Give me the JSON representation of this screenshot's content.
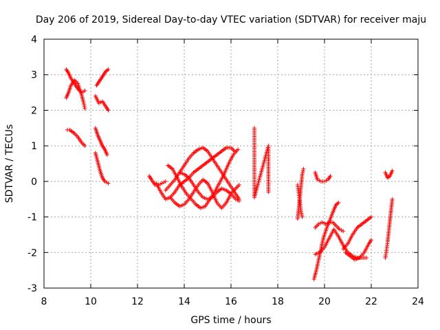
{
  "chart_data": {
    "type": "scatter",
    "title": "Day 206 of 2019, Sidereal Day-to-day VTEC variation (SDTVAR) for receiver maju",
    "xlabel": "GPS time / hours",
    "ylabel": "SDTVAR / TECUs",
    "xlim": [
      8,
      24
    ],
    "ylim": [
      -3,
      4
    ],
    "x_ticks": [
      8,
      10,
      12,
      14,
      16,
      18,
      20,
      22,
      24
    ],
    "y_ticks": [
      -3,
      -2,
      -1,
      0,
      1,
      2,
      3,
      4
    ],
    "x_tick_labels": [
      "8",
      "10",
      "12",
      "14",
      "16",
      "18",
      "20",
      "22",
      "24"
    ],
    "y_tick_labels": [
      "-3",
      "-2",
      "-1",
      "0",
      "1",
      "2",
      "3",
      "4"
    ],
    "grid": true,
    "marker": "+",
    "series": [
      {
        "name": "SDTVAR",
        "color": "#ff0000",
        "tracks": [
          [
            [
              8.95,
              3.15
            ],
            [
              9.05,
              3.05
            ],
            [
              9.15,
              2.9
            ],
            [
              9.3,
              2.75
            ],
            [
              9.45,
              2.6
            ],
            [
              9.6,
              2.5
            ],
            [
              9.75,
              2.55
            ]
          ],
          [
            [
              8.95,
              2.35
            ],
            [
              9.05,
              2.5
            ],
            [
              9.15,
              2.7
            ],
            [
              9.3,
              2.85
            ],
            [
              9.45,
              2.75
            ],
            [
              9.6,
              2.45
            ],
            [
              9.7,
              2.2
            ],
            [
              9.75,
              2.05
            ]
          ],
          [
            [
              9.0,
              1.45
            ],
            [
              9.1,
              1.45
            ],
            [
              9.2,
              1.4
            ],
            [
              9.3,
              1.35
            ],
            [
              9.45,
              1.25
            ],
            [
              9.6,
              1.1
            ],
            [
              9.75,
              1.0
            ]
          ],
          [
            [
              10.2,
              1.5
            ],
            [
              10.3,
              1.3
            ],
            [
              10.4,
              1.15
            ],
            [
              10.5,
              1.0
            ],
            [
              10.6,
              0.9
            ],
            [
              10.7,
              0.75
            ]
          ],
          [
            [
              10.2,
              0.8
            ],
            [
              10.3,
              0.55
            ],
            [
              10.4,
              0.3
            ],
            [
              10.5,
              0.1
            ],
            [
              10.6,
              0.0
            ],
            [
              10.75,
              -0.05
            ]
          ],
          [
            [
              10.2,
              2.4
            ],
            [
              10.35,
              2.2
            ],
            [
              10.5,
              2.25
            ],
            [
              10.65,
              2.1
            ],
            [
              10.75,
              2.0
            ]
          ],
          [
            [
              10.25,
              2.7
            ],
            [
              10.35,
              2.8
            ],
            [
              10.45,
              2.9
            ],
            [
              10.55,
              3.0
            ],
            [
              10.65,
              3.1
            ],
            [
              10.75,
              3.15
            ]
          ],
          [
            [
              12.5,
              0.15
            ],
            [
              12.6,
              0.05
            ],
            [
              12.75,
              -0.1
            ],
            [
              12.9,
              -0.1
            ],
            [
              13.05,
              -0.05
            ],
            [
              13.2,
              0.0
            ]
          ],
          [
            [
              12.8,
              -0.05
            ],
            [
              13.0,
              -0.3
            ],
            [
              13.2,
              -0.5
            ],
            [
              13.4,
              -0.45
            ],
            [
              13.6,
              -0.3
            ],
            [
              13.8,
              -0.1
            ],
            [
              14.0,
              0.0
            ],
            [
              14.2,
              0.1
            ],
            [
              14.4,
              0.25
            ],
            [
              14.6,
              0.35
            ],
            [
              14.8,
              0.45
            ],
            [
              15.0,
              0.55
            ],
            [
              15.2,
              0.65
            ],
            [
              15.4,
              0.75
            ],
            [
              15.6,
              0.85
            ],
            [
              15.8,
              0.95
            ],
            [
              16.0,
              0.95
            ],
            [
              16.15,
              0.85
            ]
          ],
          [
            [
              13.3,
              0.45
            ],
            [
              13.5,
              0.35
            ],
            [
              13.7,
              0.1
            ],
            [
              13.9,
              -0.15
            ],
            [
              14.1,
              -0.35
            ],
            [
              14.3,
              -0.5
            ],
            [
              14.5,
              -0.65
            ],
            [
              14.7,
              -0.75
            ],
            [
              14.9,
              -0.7
            ],
            [
              15.1,
              -0.5
            ],
            [
              15.3,
              -0.3
            ],
            [
              15.5,
              -0.05
            ],
            [
              15.7,
              0.2
            ],
            [
              15.9,
              0.5
            ],
            [
              16.1,
              0.75
            ],
            [
              16.3,
              0.9
            ]
          ],
          [
            [
              13.2,
              -0.25
            ],
            [
              13.4,
              -0.1
            ],
            [
              13.6,
              0.05
            ],
            [
              13.8,
              0.25
            ],
            [
              14.0,
              0.45
            ],
            [
              14.2,
              0.65
            ],
            [
              14.4,
              0.8
            ],
            [
              14.6,
              0.9
            ],
            [
              14.8,
              0.95
            ],
            [
              15.0,
              0.85
            ],
            [
              15.2,
              0.65
            ],
            [
              15.4,
              0.45
            ],
            [
              15.6,
              0.25
            ],
            [
              15.8,
              0.05
            ],
            [
              16.0,
              -0.15
            ],
            [
              16.2,
              -0.35
            ],
            [
              16.35,
              -0.5
            ]
          ],
          [
            [
              13.4,
              -0.45
            ],
            [
              13.6,
              -0.6
            ],
            [
              13.8,
              -0.7
            ],
            [
              14.0,
              -0.65
            ],
            [
              14.2,
              -0.5
            ],
            [
              14.4,
              -0.3
            ],
            [
              14.6,
              -0.1
            ],
            [
              14.8,
              0.05
            ],
            [
              15.0,
              -0.05
            ],
            [
              15.2,
              -0.3
            ],
            [
              15.4,
              -0.6
            ],
            [
              15.6,
              -0.75
            ],
            [
              15.8,
              -0.6
            ],
            [
              16.0,
              -0.35
            ],
            [
              16.2,
              -0.2
            ],
            [
              16.35,
              -0.1
            ]
          ],
          [
            [
              13.8,
              0.25
            ],
            [
              14.0,
              0.2
            ],
            [
              14.2,
              0.1
            ],
            [
              14.4,
              -0.1
            ],
            [
              14.6,
              -0.3
            ],
            [
              14.8,
              -0.45
            ],
            [
              15.0,
              -0.5
            ],
            [
              15.2,
              -0.45
            ],
            [
              15.4,
              -0.3
            ],
            [
              15.6,
              -0.2
            ],
            [
              15.8,
              -0.25
            ],
            [
              16.0,
              -0.35
            ],
            [
              16.2,
              -0.5
            ],
            [
              16.35,
              -0.55
            ]
          ],
          [
            [
              17.0,
              1.5
            ],
            [
              17.0,
              0.6
            ],
            [
              17.0,
              -0.3
            ],
            [
              17.0,
              -0.45
            ],
            [
              17.6,
              1.0
            ],
            [
              17.6,
              -0.3
            ]
          ],
          [
            [
              18.85,
              -1.05
            ],
            [
              18.9,
              -0.75
            ],
            [
              18.95,
              -0.45
            ],
            [
              19.0,
              -0.1
            ],
            [
              19.05,
              0.2
            ],
            [
              19.1,
              0.35
            ]
          ],
          [
            [
              18.85,
              -0.1
            ],
            [
              18.9,
              -0.35
            ],
            [
              18.95,
              -0.6
            ],
            [
              19.0,
              -0.85
            ],
            [
              19.05,
              -1.0
            ]
          ],
          [
            [
              19.6,
              0.25
            ],
            [
              19.7,
              0.05
            ],
            [
              19.85,
              0.0
            ],
            [
              20.0,
              0.0
            ],
            [
              20.15,
              0.05
            ],
            [
              20.25,
              0.15
            ]
          ],
          [
            [
              19.55,
              -2.75
            ],
            [
              19.65,
              -2.5
            ],
            [
              19.75,
              -2.2
            ],
            [
              19.85,
              -1.9
            ],
            [
              19.95,
              -1.6
            ],
            [
              20.1,
              -1.3
            ],
            [
              20.25,
              -1.05
            ],
            [
              20.4,
              -0.8
            ],
            [
              20.5,
              -0.65
            ],
            [
              20.6,
              -0.6
            ]
          ],
          [
            [
              19.6,
              -1.3
            ],
            [
              19.75,
              -1.2
            ],
            [
              19.9,
              -1.15
            ],
            [
              20.05,
              -1.2
            ],
            [
              20.2,
              -1.15
            ],
            [
              20.35,
              -1.15
            ],
            [
              20.5,
              -1.25
            ],
            [
              20.65,
              -1.35
            ],
            [
              20.8,
              -1.4
            ]
          ],
          [
            [
              19.6,
              -2.05
            ],
            [
              19.8,
              -2.0
            ],
            [
              20.0,
              -1.85
            ],
            [
              20.2,
              -1.6
            ],
            [
              20.4,
              -1.35
            ],
            [
              20.6,
              -1.55
            ],
            [
              20.8,
              -1.8
            ],
            [
              21.0,
              -2.0
            ],
            [
              21.2,
              -2.1
            ],
            [
              21.4,
              -2.15
            ],
            [
              21.6,
              -2.15
            ],
            [
              21.8,
              -2.15
            ]
          ],
          [
            [
              20.8,
              -1.9
            ],
            [
              21.0,
              -1.75
            ],
            [
              21.2,
              -1.5
            ],
            [
              21.4,
              -1.3
            ],
            [
              21.6,
              -1.2
            ],
            [
              21.8,
              -1.1
            ],
            [
              22.0,
              -1.0
            ]
          ],
          [
            [
              20.9,
              -2.0
            ],
            [
              21.1,
              -2.1
            ],
            [
              21.3,
              -2.2
            ],
            [
              21.5,
              -2.15
            ],
            [
              21.7,
              -2.0
            ],
            [
              21.9,
              -1.75
            ],
            [
              22.0,
              -1.65
            ]
          ],
          [
            [
              22.6,
              -2.15
            ],
            [
              22.65,
              -1.95
            ],
            [
              22.7,
              -1.7
            ],
            [
              22.75,
              -1.4
            ],
            [
              22.8,
              -1.1
            ],
            [
              22.85,
              -0.8
            ],
            [
              22.9,
              -0.5
            ]
          ],
          [
            [
              22.6,
              0.25
            ],
            [
              22.7,
              0.1
            ],
            [
              22.8,
              0.15
            ],
            [
              22.9,
              0.3
            ]
          ]
        ]
      }
    ]
  }
}
